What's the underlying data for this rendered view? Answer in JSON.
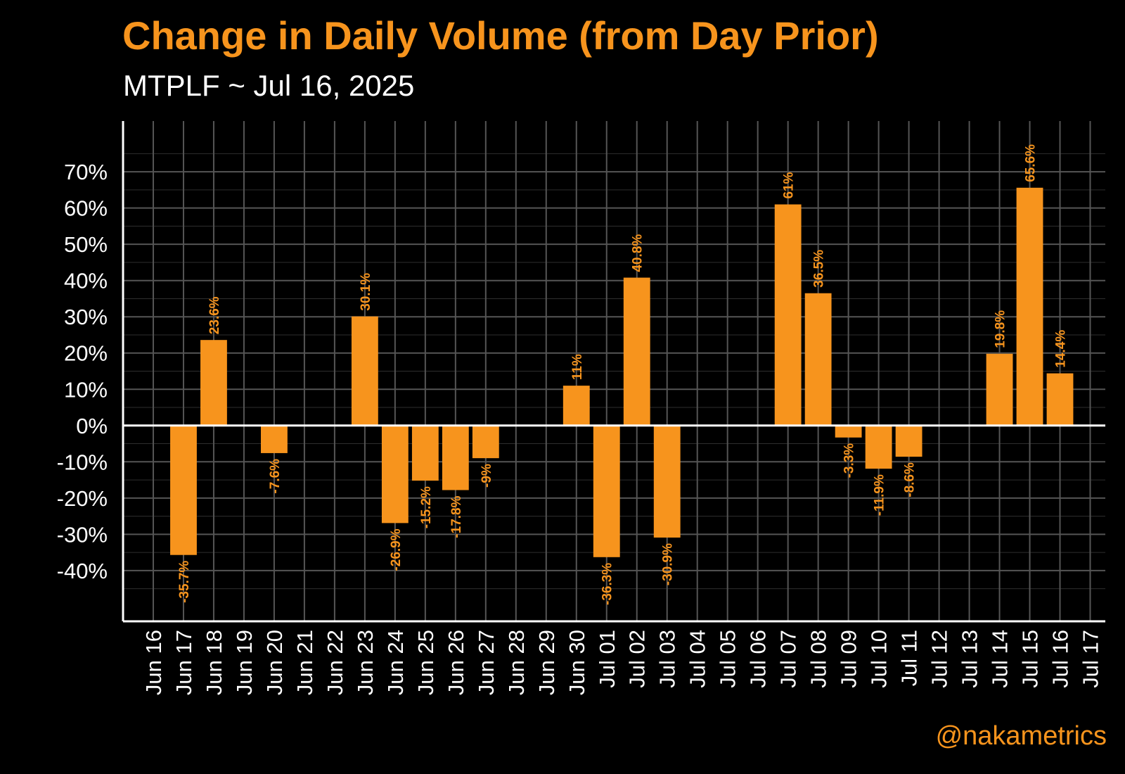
{
  "chart_data": {
    "type": "bar",
    "title": "Change in Daily Volume (from Day Prior)",
    "subtitle": "MTPLF ~ Jul 16, 2025",
    "watermark": "@nakametrics",
    "bar_color": "#f7941d",
    "background": "#000000",
    "ylim": [
      -54,
      84
    ],
    "y_ticks": [
      70,
      60,
      50,
      40,
      30,
      20,
      10,
      0,
      -10,
      -20,
      -30,
      -40
    ],
    "y_tick_labels": [
      "70%",
      "60%",
      "50%",
      "40%",
      "30%",
      "20%",
      "10%",
      "0%",
      "-10%",
      "-20%",
      "-30%",
      "-40%"
    ],
    "grid": true,
    "categories": [
      "Jun 16",
      "Jun 17",
      "Jun 18",
      "Jun 19",
      "Jun 20",
      "Jun 21",
      "Jun 22",
      "Jun 23",
      "Jun 24",
      "Jun 25",
      "Jun 26",
      "Jun 27",
      "Jun 28",
      "Jun 29",
      "Jun 30",
      "Jul 01",
      "Jul 02",
      "Jul 03",
      "Jul 04",
      "Jul 05",
      "Jul 06",
      "Jul 07",
      "Jul 08",
      "Jul 09",
      "Jul 10",
      "Jul 11",
      "Jul 12",
      "Jul 13",
      "Jul 14",
      "Jul 15",
      "Jul 16",
      "Jul 17"
    ],
    "values": [
      null,
      -35.7,
      23.6,
      null,
      -7.6,
      null,
      null,
      30.1,
      -26.9,
      -15.2,
      -17.8,
      -9,
      null,
      null,
      11,
      -36.3,
      40.8,
      -30.9,
      null,
      null,
      null,
      61,
      36.5,
      -3.3,
      -11.9,
      -8.6,
      null,
      null,
      19.8,
      65.6,
      14.4,
      null
    ],
    "value_labels": [
      null,
      "-35.7%",
      "23.6%",
      null,
      "-7.6%",
      null,
      null,
      "30.1%",
      "-26.9%",
      "-15.2%",
      "-17.8%",
      "-9%",
      null,
      null,
      "11%",
      "-36.3%",
      "40.8%",
      "-30.9%",
      null,
      null,
      null,
      "61%",
      "36.5%",
      "-3.3%",
      "-11.9%",
      "-8.6%",
      null,
      null,
      "19.8%",
      "65.6%",
      "14.4%",
      null
    ]
  }
}
